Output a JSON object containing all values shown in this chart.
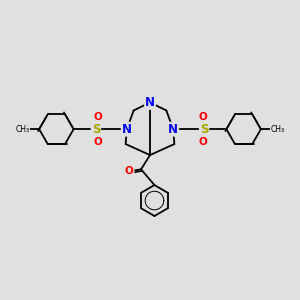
{
  "background_color": "#e0e0e0",
  "figure_size": [
    3.0,
    3.0
  ],
  "dpi": 100,
  "atom_colors": {
    "N": "#0000ff",
    "O": "#ff0000",
    "S": "#aaaa00",
    "C": "#000000"
  },
  "bond_color": "#000000",
  "bond_lw": 1.3
}
